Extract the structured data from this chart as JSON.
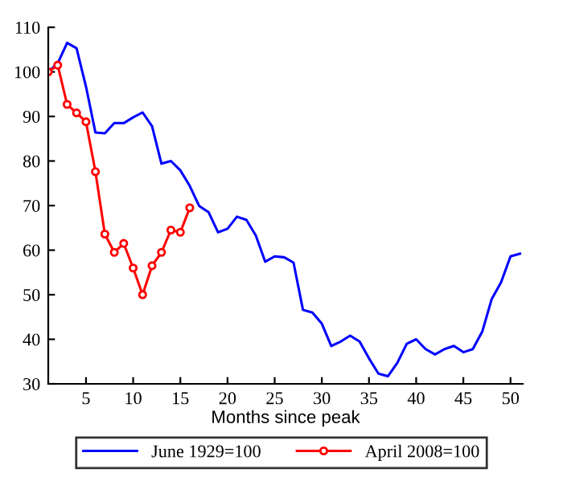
{
  "chart_data": {
    "type": "line",
    "xlabel": "Months since peak",
    "xlim": [
      1,
      51.3
    ],
    "xticks": [
      5,
      10,
      15,
      20,
      25,
      30,
      35,
      40,
      45,
      50
    ],
    "ylim": [
      30,
      110
    ],
    "yticks": [
      30,
      40,
      50,
      60,
      70,
      80,
      90,
      100,
      110
    ],
    "grid": false,
    "legend": "bottom",
    "series": [
      {
        "name": "June 1929=100",
        "color": "#0000ff",
        "marker": "none",
        "x": [
          1,
          2,
          3,
          4,
          5,
          6,
          7,
          8,
          9,
          10,
          11,
          12,
          13,
          14,
          15,
          16,
          17,
          18,
          19,
          20,
          21,
          22,
          23,
          24,
          25,
          26,
          27,
          28,
          29,
          30,
          31,
          32,
          33,
          34,
          35,
          36,
          37,
          38,
          39,
          40,
          41,
          42,
          43,
          44,
          45,
          46,
          47,
          48,
          49,
          50,
          51
        ],
        "values": [
          100,
          101.9,
          106.5,
          105.3,
          96.7,
          86.4,
          86.2,
          88.5,
          88.5,
          89.8,
          90.9,
          87.8,
          79.4,
          80,
          77.9,
          74.4,
          69.9,
          68.5,
          64,
          64.8,
          67.5,
          66.8,
          63.3,
          57.4,
          58.6,
          58.4,
          57.2,
          46.6,
          46,
          43.5,
          38.5,
          39.5,
          40.8,
          39.5,
          35.7,
          32.3,
          31.7,
          34.7,
          39,
          40,
          37.8,
          36.6,
          37.8,
          38.5,
          37.1,
          37.8,
          41.7,
          49,
          52.8,
          58.6,
          59.2
        ]
      },
      {
        "name": "April 2008=100",
        "color": "#ff0000",
        "marker": "circle",
        "x": [
          1,
          2,
          3,
          4,
          5,
          6,
          7,
          8,
          9,
          10,
          11,
          12,
          13,
          14,
          15,
          16
        ],
        "values": [
          100,
          101.5,
          92.7,
          90.8,
          88.8,
          77.6,
          63.6,
          59.5,
          61.5,
          56,
          50,
          56.5,
          59.5,
          64.5,
          64,
          69.5
        ]
      }
    ]
  }
}
